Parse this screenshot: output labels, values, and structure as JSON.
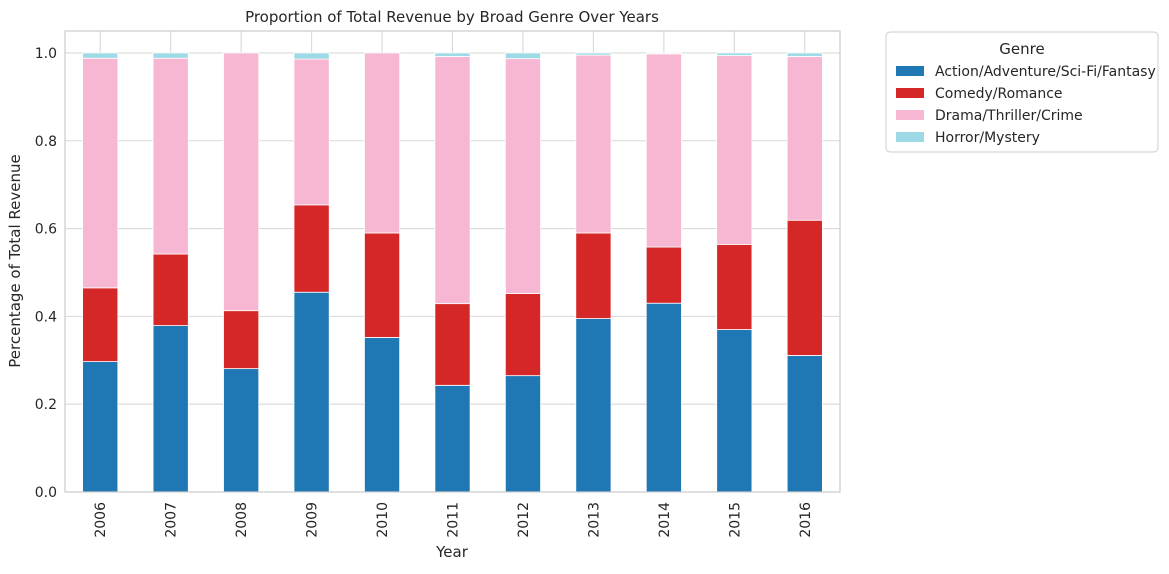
{
  "chart_data": {
    "type": "bar",
    "stacked": true,
    "title": "Proportion of Total Revenue by Broad Genre Over Years",
    "xlabel": "Year",
    "ylabel": "Percentage of Total Revenue",
    "ylim": [
      0,
      1.05
    ],
    "yticks": [
      "0.0",
      "0.2",
      "0.4",
      "0.6",
      "0.8",
      "1.0"
    ],
    "grid": true,
    "legend_title": "Genre",
    "legend_placement": "outside top-right",
    "categories": [
      "2006",
      "2007",
      "2008",
      "2009",
      "2010",
      "2011",
      "2012",
      "2013",
      "2014",
      "2015",
      "2016"
    ],
    "series": [
      {
        "name": "Action/Adventure/Sci-Fi/Fantasy",
        "color": "#1f77b4",
        "values": [
          0.297,
          0.379,
          0.281,
          0.455,
          0.352,
          0.243,
          0.265,
          0.395,
          0.43,
          0.37,
          0.311
        ]
      },
      {
        "name": "Comedy/Romance",
        "color": "#d62728",
        "values": [
          0.168,
          0.163,
          0.132,
          0.199,
          0.238,
          0.186,
          0.187,
          0.195,
          0.128,
          0.194,
          0.308
        ]
      },
      {
        "name": "Drama/Thriller/Crime",
        "color": "#f7b6d2",
        "values": [
          0.523,
          0.446,
          0.587,
          0.332,
          0.41,
          0.563,
          0.535,
          0.405,
          0.44,
          0.43,
          0.373
        ]
      },
      {
        "name": "Horror/Mystery",
        "color": "#9edae5",
        "values": [
          0.012,
          0.012,
          0.0,
          0.014,
          0.0,
          0.008,
          0.013,
          0.005,
          0.002,
          0.006,
          0.008
        ]
      }
    ]
  }
}
